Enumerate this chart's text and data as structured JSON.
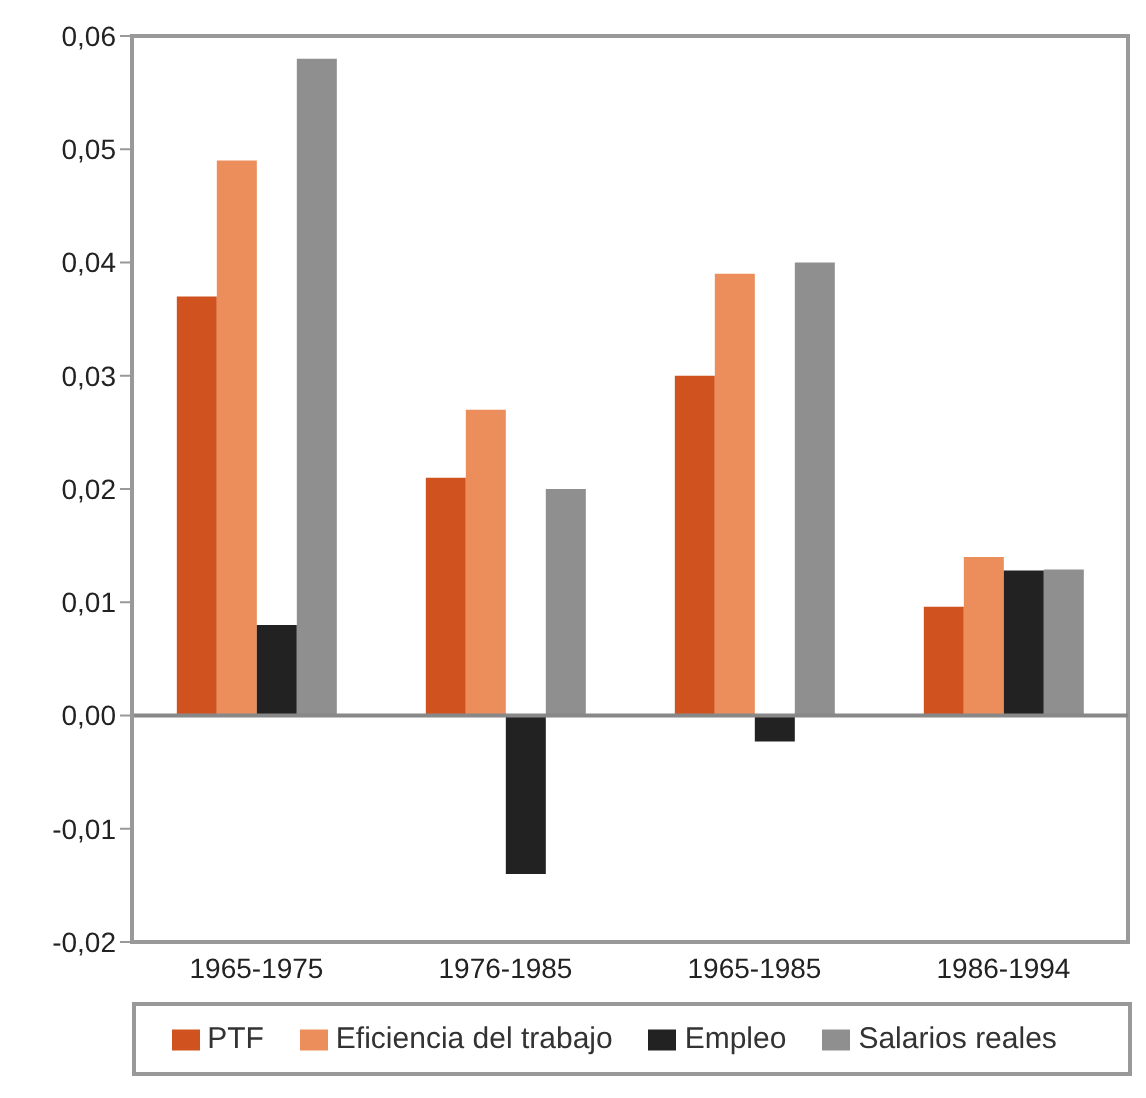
{
  "chart_data": {
    "type": "bar",
    "categories": [
      "1965-1975",
      "1976-1985",
      "1965-1985",
      "1986-1994"
    ],
    "series": [
      {
        "name": "PTF",
        "color": "#d0521f",
        "values": [
          0.037,
          0.021,
          0.03,
          0.0096
        ]
      },
      {
        "name": "Eficiencia del trabajo",
        "color": "#ec8d5c",
        "values": [
          0.049,
          0.027,
          0.039,
          0.014
        ]
      },
      {
        "name": "Empleo",
        "color": "#222222",
        "values": [
          0.008,
          -0.014,
          -0.0023,
          0.0128
        ]
      },
      {
        "name": "Salarios reales",
        "color": "#8f8f8f",
        "values": [
          0.058,
          0.02,
          0.04,
          0.0129
        ]
      }
    ],
    "ylim": [
      -0.02,
      0.06
    ],
    "yticks": [
      {
        "value": -0.02,
        "label": "-0,02"
      },
      {
        "value": -0.01,
        "label": "-0,01"
      },
      {
        "value": 0,
        "label": "0,00"
      },
      {
        "value": 0.01,
        "label": "0,01"
      },
      {
        "value": 0.02,
        "label": "0,02"
      },
      {
        "value": 0.03,
        "label": "0,03"
      },
      {
        "value": 0.04,
        "label": "0,04"
      },
      {
        "value": 0.05,
        "label": "0,05"
      },
      {
        "value": 0.06,
        "label": "0,06"
      }
    ],
    "ref_lines": [
      {
        "axis": "y",
        "value": 0,
        "color": "#888888"
      }
    ],
    "grid": false,
    "legend": "bottom"
  }
}
